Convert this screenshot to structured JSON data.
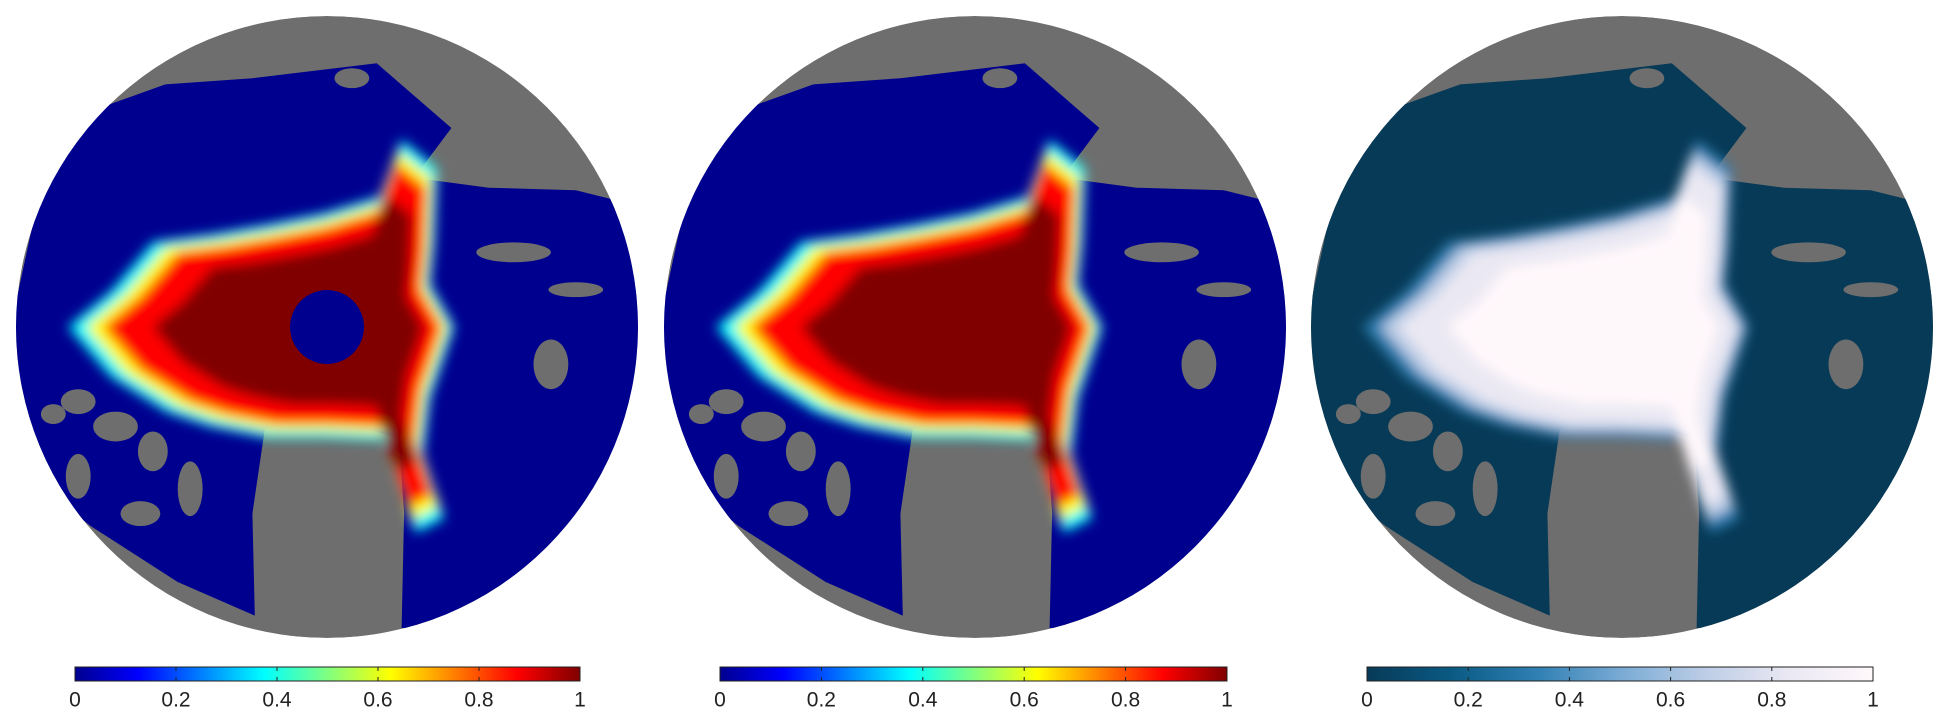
{
  "panels": [
    {
      "colorbar": {
        "range": [
          0,
          1
        ],
        "ticks": [
          0,
          0.2,
          0.4,
          0.6,
          0.8,
          1
        ],
        "colormap": [
          "#00008f",
          "#0000ff",
          "#0080ff",
          "#00ffff",
          "#80ff80",
          "#ffff00",
          "#ff8000",
          "#ff0000",
          "#800000"
        ]
      }
    },
    {
      "colorbar": {
        "range": [
          0,
          1
        ],
        "ticks": [
          0,
          0.2,
          0.4,
          0.6,
          0.8,
          1
        ],
        "colormap": [
          "#00008f",
          "#0000ff",
          "#0080ff",
          "#00ffff",
          "#80ff80",
          "#ffff00",
          "#ff8000",
          "#ff0000",
          "#800000"
        ]
      }
    },
    {
      "colorbar": {
        "range": [
          0,
          1
        ],
        "ticks": [
          0,
          0.2,
          0.4,
          0.6,
          0.8,
          1
        ],
        "colormap": [
          "#073a57",
          "#0a5a84",
          "#2f7fb3",
          "#78aad4",
          "#bccde6",
          "#eae8f3",
          "#fff8fb"
        ]
      }
    }
  ]
}
